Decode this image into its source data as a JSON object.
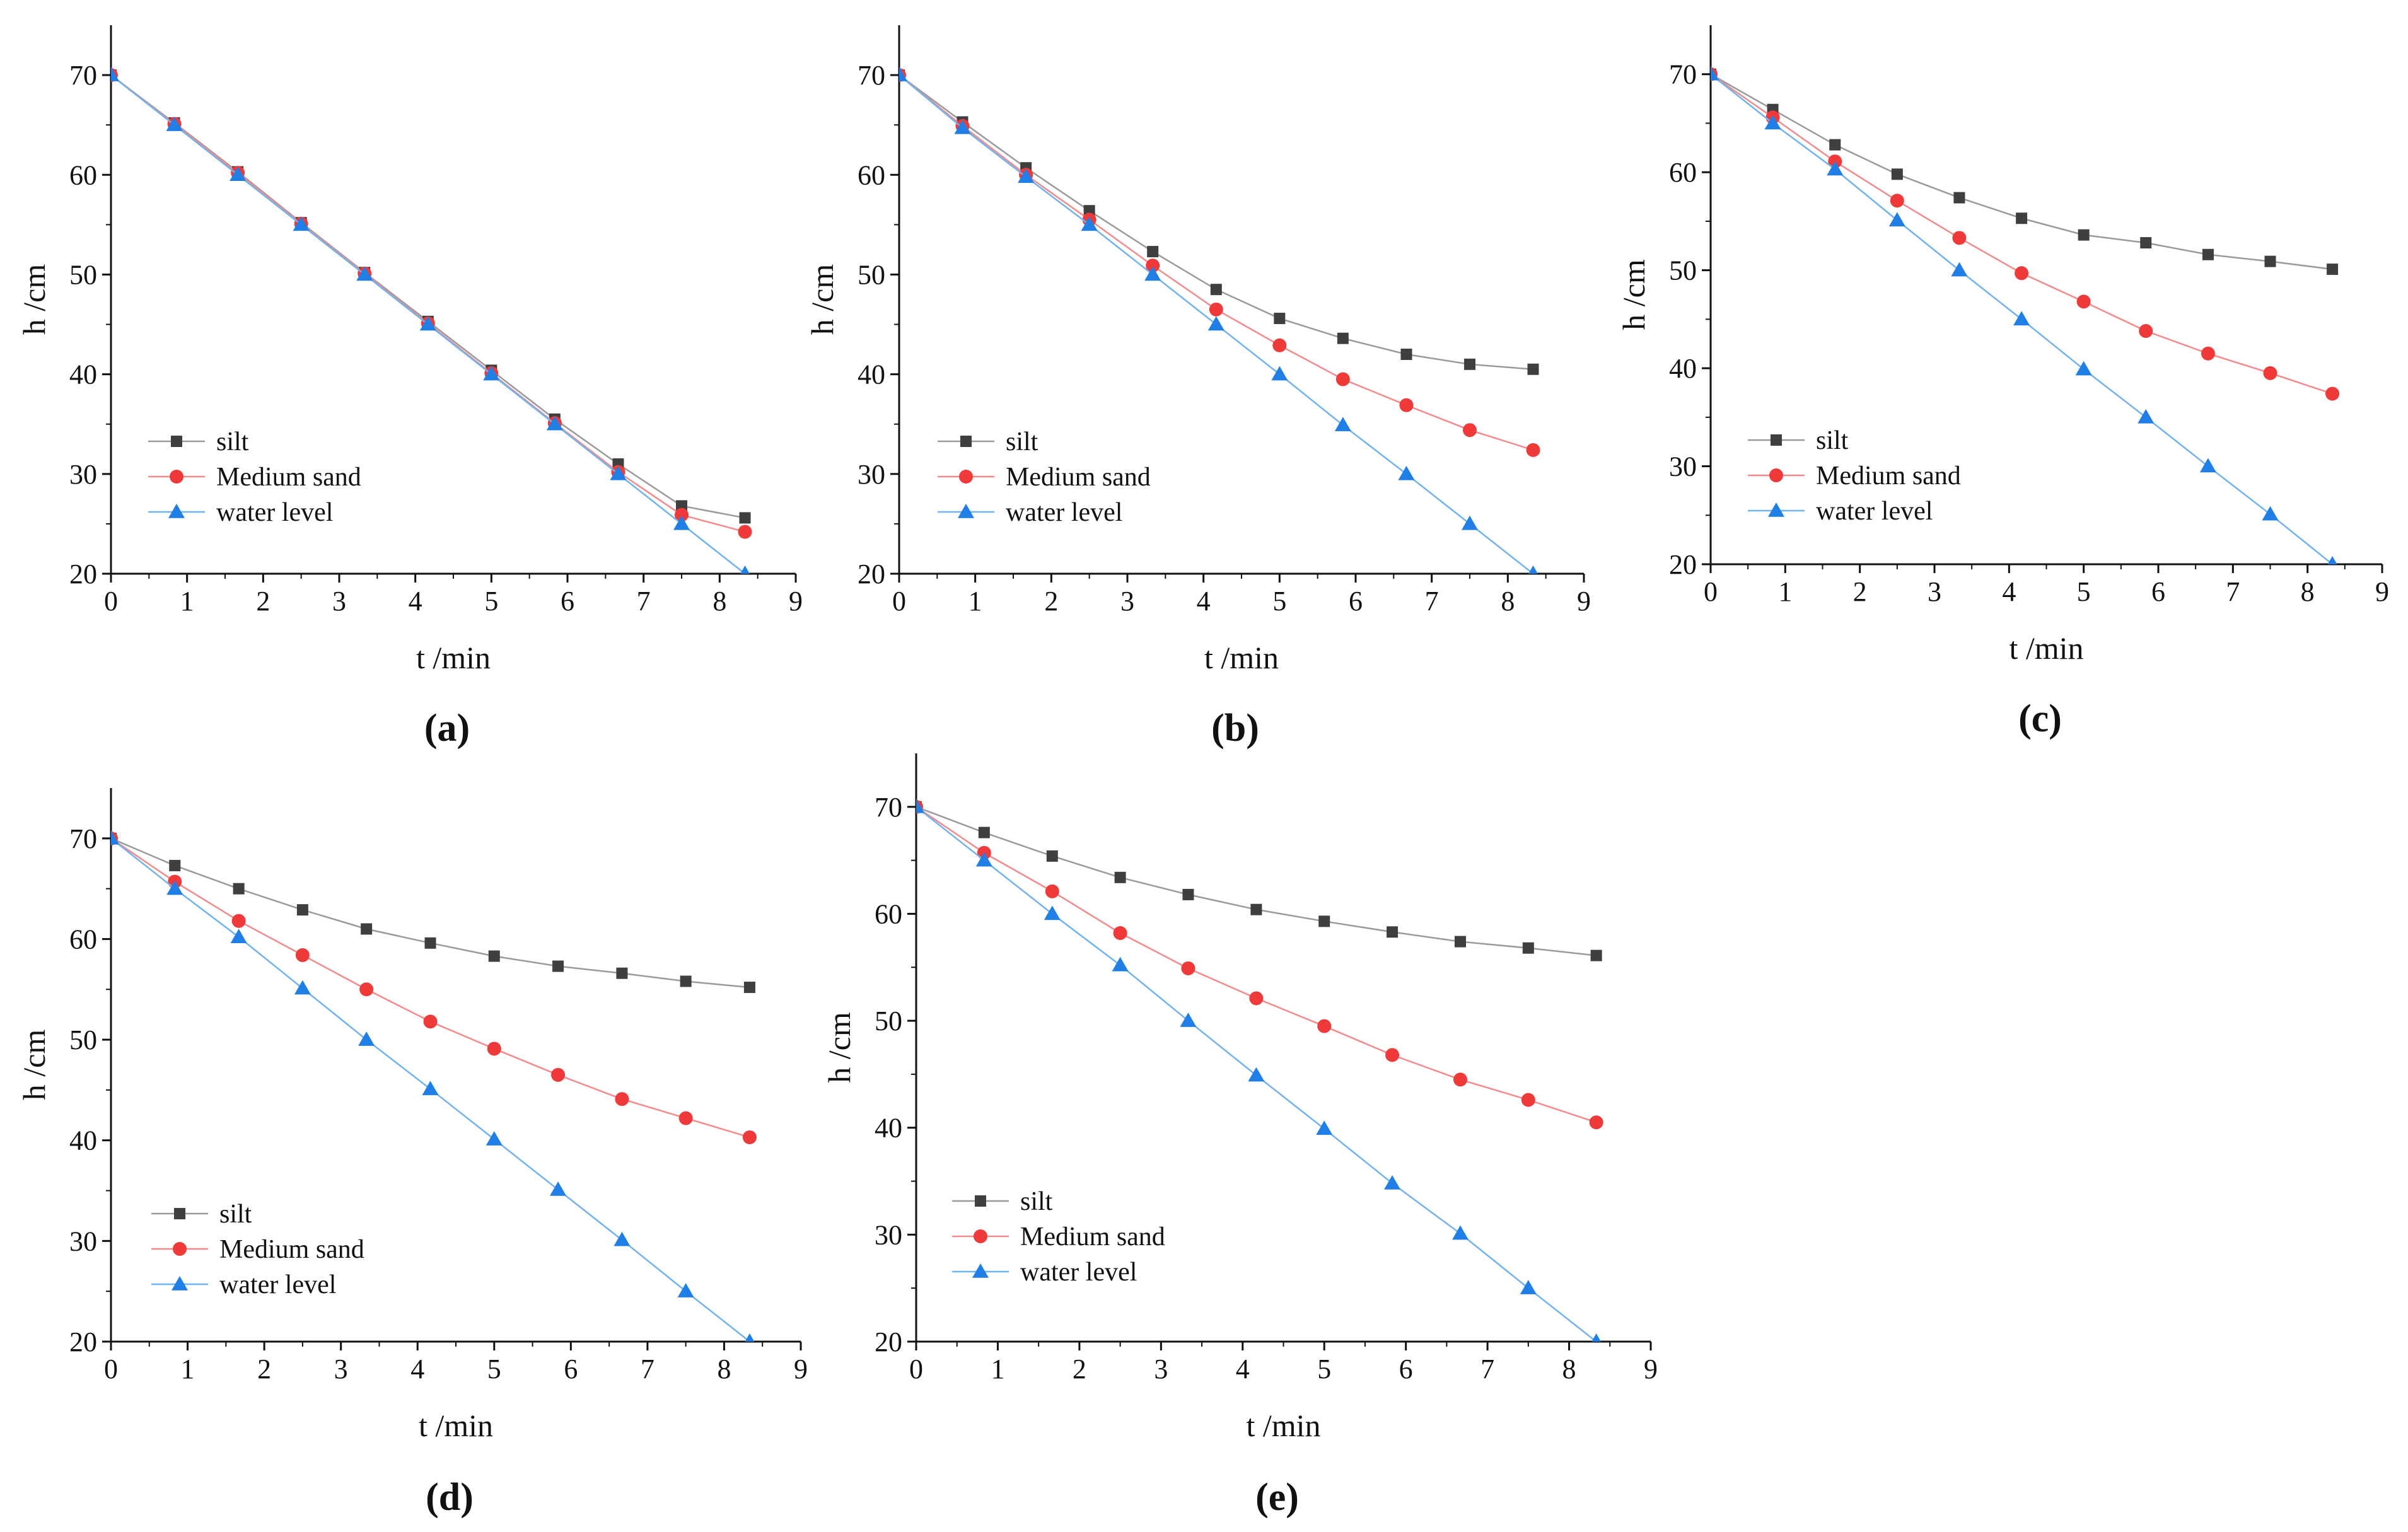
{
  "figure": {
    "series_styles": [
      {
        "name": "silt",
        "color": "#3f3f3f",
        "line_color": "#9a9a9a",
        "marker": "square"
      },
      {
        "name": "Medium sand",
        "color": "#f03a3a",
        "line_color": "#f48a8a",
        "marker": "circle"
      },
      {
        "name": "water level",
        "color": "#1f7fe6",
        "line_color": "#6fb3ef",
        "marker": "triangle"
      }
    ]
  },
  "chart_data": [
    {
      "type": "line",
      "panel_label": "(a)",
      "xlabel": "t /min",
      "ylabel": "h /cm",
      "xlim": [
        0,
        9
      ],
      "ylim": [
        20,
        75
      ],
      "xticks": [
        0,
        1,
        2,
        3,
        4,
        5,
        6,
        7,
        8,
        9
      ],
      "yticks": [
        20,
        30,
        40,
        50,
        60,
        70
      ],
      "x": [
        0,
        0.833,
        1.667,
        2.5,
        3.333,
        4.167,
        5.0,
        5.833,
        6.667,
        7.5,
        8.333
      ],
      "series": [
        {
          "name": "silt",
          "values": [
            70,
            65.2,
            60.3,
            55.2,
            50.2,
            45.3,
            40.4,
            35.5,
            31.0,
            26.8,
            25.6
          ]
        },
        {
          "name": "Medium sand",
          "values": [
            70,
            65.1,
            60.2,
            55.1,
            50.1,
            45.1,
            40.1,
            35.1,
            30.2,
            25.9,
            24.2
          ]
        },
        {
          "name": "water level",
          "values": [
            70,
            65.0,
            60.0,
            55.0,
            50.0,
            45.0,
            40.0,
            35.0,
            30.0,
            25.0,
            20.0
          ]
        }
      ]
    },
    {
      "type": "line",
      "panel_label": "(b)",
      "xlabel": "t /min",
      "ylabel": "h /cm",
      "xlim": [
        0,
        9
      ],
      "ylim": [
        20,
        75
      ],
      "xticks": [
        0,
        1,
        2,
        3,
        4,
        5,
        6,
        7,
        8,
        9
      ],
      "yticks": [
        20,
        30,
        40,
        50,
        60,
        70
      ],
      "x": [
        0,
        0.833,
        1.667,
        2.5,
        3.333,
        4.167,
        5.0,
        5.833,
        6.667,
        7.5,
        8.333
      ],
      "series": [
        {
          "name": "silt",
          "values": [
            70,
            65.3,
            60.7,
            56.4,
            52.3,
            48.5,
            45.6,
            43.6,
            42.0,
            41.0,
            40.5
          ]
        },
        {
          "name": "Medium sand",
          "values": [
            70,
            64.9,
            60.0,
            55.5,
            50.9,
            46.5,
            42.9,
            39.5,
            36.9,
            34.4,
            32.4
          ]
        },
        {
          "name": "water level",
          "values": [
            70,
            64.7,
            59.8,
            55.0,
            50.0,
            45.0,
            40.0,
            34.9,
            30.0,
            25.0,
            20.0
          ]
        }
      ]
    },
    {
      "type": "line",
      "panel_label": "(c)",
      "xlabel": "t /min",
      "ylabel": "h /cm",
      "xlim": [
        0,
        9
      ],
      "ylim": [
        20,
        75
      ],
      "xticks": [
        0,
        1,
        2,
        3,
        4,
        5,
        6,
        7,
        8,
        9
      ],
      "yticks": [
        20,
        30,
        40,
        50,
        60,
        70
      ],
      "x": [
        0,
        0.833,
        1.667,
        2.5,
        3.333,
        4.167,
        5.0,
        5.833,
        6.667,
        7.5,
        8.333
      ],
      "series": [
        {
          "name": "silt",
          "values": [
            70,
            66.4,
            62.8,
            59.8,
            57.4,
            55.3,
            53.6,
            52.8,
            51.6,
            50.9,
            50.1
          ]
        },
        {
          "name": "Medium sand",
          "values": [
            70,
            65.6,
            61.1,
            57.1,
            53.3,
            49.7,
            46.8,
            43.8,
            41.5,
            39.5,
            37.4
          ]
        },
        {
          "name": "water level",
          "values": [
            70,
            65.0,
            60.3,
            55.1,
            50.0,
            45.0,
            39.9,
            35.0,
            30.0,
            25.1,
            20.0
          ]
        }
      ]
    },
    {
      "type": "line",
      "panel_label": "(d)",
      "xlabel": "t /min",
      "ylabel": "h /cm",
      "xlim": [
        0,
        9
      ],
      "ylim": [
        20,
        75
      ],
      "xticks": [
        0,
        1,
        2,
        3,
        4,
        5,
        6,
        7,
        8,
        9
      ],
      "yticks": [
        20,
        30,
        40,
        50,
        60,
        70
      ],
      "x": [
        0,
        0.833,
        1.667,
        2.5,
        3.333,
        4.167,
        5.0,
        5.833,
        6.667,
        7.5,
        8.333
      ],
      "series": [
        {
          "name": "silt",
          "values": [
            70,
            67.3,
            65.0,
            62.9,
            61.0,
            59.6,
            58.3,
            57.3,
            56.6,
            55.8,
            55.2
          ]
        },
        {
          "name": "Medium sand",
          "values": [
            70,
            65.7,
            61.8,
            58.4,
            55.0,
            51.8,
            49.1,
            46.5,
            44.1,
            42.2,
            40.3
          ]
        },
        {
          "name": "water level",
          "values": [
            70,
            65.0,
            60.2,
            55.1,
            50.0,
            45.1,
            40.1,
            35.1,
            30.1,
            25.0,
            20.0
          ]
        }
      ]
    },
    {
      "type": "line",
      "panel_label": "(e)",
      "xlabel": "t /min",
      "ylabel": "h /cm",
      "xlim": [
        0,
        9
      ],
      "ylim": [
        20,
        75
      ],
      "xticks": [
        0,
        1,
        2,
        3,
        4,
        5,
        6,
        7,
        8,
        9
      ],
      "yticks": [
        20,
        30,
        40,
        50,
        60,
        70
      ],
      "x": [
        0,
        0.833,
        1.667,
        2.5,
        3.333,
        4.167,
        5.0,
        5.833,
        6.667,
        7.5,
        8.333
      ],
      "series": [
        {
          "name": "silt",
          "values": [
            70,
            67.6,
            65.4,
            63.4,
            61.8,
            60.4,
            59.3,
            58.3,
            57.4,
            56.8,
            56.1
          ]
        },
        {
          "name": "Medium sand",
          "values": [
            70,
            65.7,
            62.1,
            58.2,
            54.9,
            52.1,
            49.5,
            46.8,
            44.5,
            42.6,
            40.5
          ]
        },
        {
          "name": "water level",
          "values": [
            70,
            65.0,
            60.0,
            55.2,
            50.0,
            44.9,
            39.9,
            34.8,
            30.1,
            25.0,
            20.0
          ]
        }
      ]
    }
  ]
}
